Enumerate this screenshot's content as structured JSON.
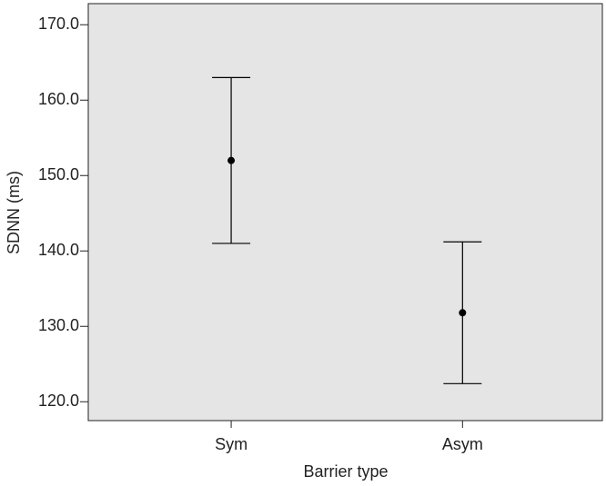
{
  "chart_data": {
    "type": "errorbar",
    "x_label": "Barrier type",
    "y_label": "SDNN (ms)",
    "categories": [
      "Sym",
      "Asym"
    ],
    "values": [
      152,
      131.8
    ],
    "errors": [
      11,
      9.4
    ],
    "color": "#000000",
    "ylim": [
      117.5,
      172.8
    ],
    "yticks": [
      {
        "value": 120,
        "label": "120.0"
      },
      {
        "value": 130,
        "label": "130.0"
      },
      {
        "value": 140,
        "label": "140.0"
      },
      {
        "value": 150,
        "label": "150.0"
      },
      {
        "value": 160,
        "label": "160.0"
      },
      {
        "value": 170,
        "label": "170.0"
      }
    ],
    "grid": false
  }
}
